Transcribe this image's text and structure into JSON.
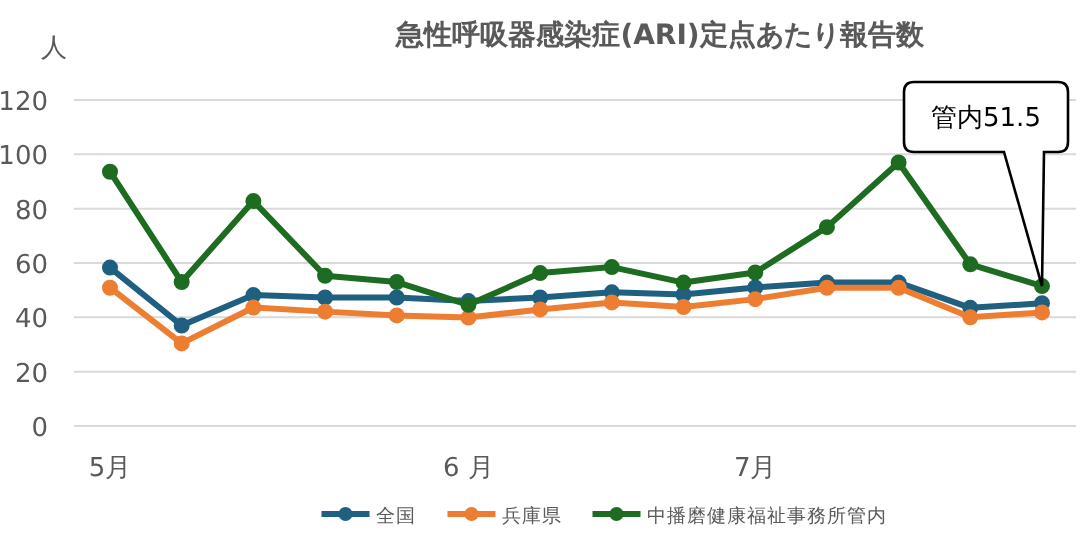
{
  "chart_data": {
    "type": "line",
    "title": "急性呼吸器感染症(ARI)定点あたり報告数",
    "ylabel": "人",
    "categories": [
      "5月",
      null,
      null,
      null,
      null,
      "6 月",
      null,
      null,
      null,
      "7月",
      null,
      null,
      null,
      null
    ],
    "series": [
      {
        "name": "全国",
        "color": "#1f5f7f",
        "values": [
          58.3,
          37,
          48.2,
          47.3,
          47.3,
          46,
          47.3,
          49.2,
          48.4,
          51,
          52.8,
          52.8,
          43.5,
          45.2
        ]
      },
      {
        "name": "兵庫県",
        "color": "#ed7d31",
        "values": [
          50.9,
          30.4,
          43.6,
          42.1,
          40.7,
          39.9,
          42.9,
          45.5,
          43.8,
          46.7,
          50.9,
          50.9,
          40,
          41.8
        ]
      },
      {
        "name": "中播磨健康福祉事務所管内",
        "color": "#1e6b22",
        "values": [
          93.6,
          53,
          82.8,
          55.3,
          53,
          44.6,
          56.3,
          58.5,
          52.8,
          56.5,
          73.2,
          97,
          59.5,
          51.5
        ]
      }
    ],
    "ylim": [
      0,
      120
    ],
    "yticks": [
      0,
      20,
      40,
      60,
      80,
      100,
      120
    ],
    "grid": "y",
    "legend": "bottom",
    "marker": "circle",
    "annotations": [
      "管内51.5"
    ]
  }
}
